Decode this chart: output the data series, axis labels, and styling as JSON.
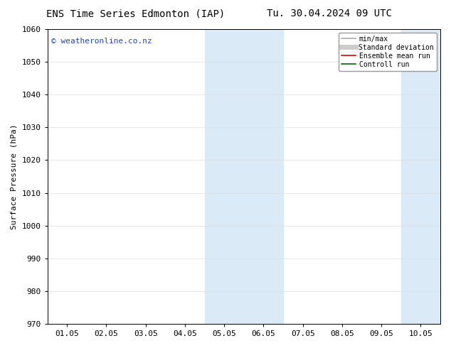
{
  "title_left": "ENS Time Series Edmonton (IAP)",
  "title_right": "Tu. 30.04.2024 09 UTC",
  "ylabel": "Surface Pressure (hPa)",
  "ylim": [
    970,
    1060
  ],
  "yticks": [
    970,
    980,
    990,
    1000,
    1010,
    1020,
    1030,
    1040,
    1050,
    1060
  ],
  "xtick_labels": [
    "01.05",
    "02.05",
    "03.05",
    "04.05",
    "05.05",
    "06.05",
    "07.05",
    "08.05",
    "09.05",
    "10.05"
  ],
  "xtick_positions": [
    0,
    1,
    2,
    3,
    4,
    5,
    6,
    7,
    8,
    9
  ],
  "xlim": [
    -0.5,
    9.5
  ],
  "shaded_regions": [
    {
      "xmin": 3.5,
      "xmax": 5.5
    },
    {
      "xmin": 8.5,
      "xmax": 9.5
    }
  ],
  "shade_color": "#daeaf7",
  "watermark_text": "© weatheronline.co.nz",
  "watermark_color": "#2244cc",
  "legend_entries": [
    {
      "label": "min/max",
      "color": "#aaaaaa",
      "lw": 1.2
    },
    {
      "label": "Standard deviation",
      "color": "#cccccc",
      "lw": 5
    },
    {
      "label": "Ensemble mean run",
      "color": "#dd0000",
      "lw": 1.2
    },
    {
      "label": "Controll run",
      "color": "#006600",
      "lw": 1.2
    }
  ],
  "background_color": "#ffffff",
  "grid_color": "#dddddd",
  "font_size": 8,
  "title_font_size": 10
}
